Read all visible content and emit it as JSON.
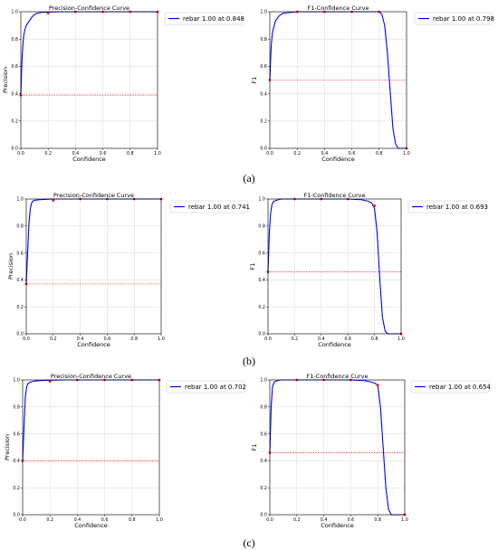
{
  "panels": [
    {
      "label": "(a)",
      "charts": [
        {
          "type": "line",
          "title": "Precision-Confidence Curve",
          "xlabel": "Confidence",
          "ylabel": "Precision",
          "xlim": [
            0,
            1
          ],
          "ylim": [
            0,
            1
          ],
          "xticks": [
            "0.0",
            "0.2",
            "0.4",
            "0.6",
            "0.8",
            "1.0"
          ],
          "yticks": [
            "0.0",
            "0.2",
            "0.4",
            "0.6",
            "0.8",
            "1.0"
          ],
          "grid": true,
          "legend_position": "right",
          "series": [
            {
              "name": "rebar 1.00 at 0.848",
              "color": "#0000ff",
              "x": [
                0.0,
                0.005,
                0.01,
                0.02,
                0.03,
                0.04,
                0.06,
                0.08,
                0.1,
                0.12,
                0.15,
                0.2,
                0.3,
                0.4,
                0.5,
                0.6,
                0.7,
                0.8,
                0.9,
                1.0
              ],
              "y": [
                0.39,
                0.55,
                0.68,
                0.82,
                0.87,
                0.9,
                0.93,
                0.96,
                0.98,
                0.99,
                0.995,
                0.998,
                1.0,
                1.0,
                1.0,
                1.0,
                1.0,
                1.0,
                1.0,
                1.0
              ]
            }
          ],
          "markers": {
            "x": [
              0.0,
              0.2,
              0.4,
              0.6,
              0.8,
              1.0
            ],
            "y": [
              0.39,
              0.99,
              1.0,
              1.0,
              1.0,
              1.0
            ],
            "color": "#ff0000"
          },
          "hline": {
            "y": 0.39,
            "color": "#ff0000"
          }
        },
        {
          "type": "line",
          "title": "F1-Confidence Curve",
          "xlabel": "Confidence",
          "ylabel": "F1",
          "xlim": [
            0,
            1
          ],
          "ylim": [
            0,
            1
          ],
          "xticks": [
            "0.0",
            "0.2",
            "0.4",
            "0.6",
            "0.8",
            "1.0"
          ],
          "yticks": [
            "0.0",
            "0.2",
            "0.4",
            "0.6",
            "0.8",
            "1.0"
          ],
          "grid": true,
          "legend_position": "right",
          "series": [
            {
              "name": "rebar 1.00 at 0.798",
              "color": "#0000ff",
              "x": [
                0.0,
                0.01,
                0.02,
                0.04,
                0.06,
                0.08,
                0.1,
                0.15,
                0.2,
                0.3,
                0.4,
                0.5,
                0.6,
                0.7,
                0.8,
                0.82,
                0.84,
                0.86,
                0.88,
                0.9,
                0.92,
                0.94,
                0.96,
                1.0
              ],
              "y": [
                0.5,
                0.75,
                0.85,
                0.93,
                0.96,
                0.98,
                0.99,
                0.995,
                1.0,
                1.0,
                1.0,
                1.0,
                1.0,
                1.0,
                1.0,
                0.98,
                0.9,
                0.7,
                0.42,
                0.15,
                0.03,
                0.0,
                0.0,
                0.0
              ]
            }
          ],
          "markers": {
            "x": [
              0.0,
              0.2,
              0.4,
              0.6,
              0.8,
              1.0
            ],
            "y": [
              0.5,
              1.0,
              1.0,
              1.0,
              1.0,
              0.0
            ],
            "color": "#ff0000"
          },
          "hline": {
            "y": 0.5,
            "color": "#ff0000"
          }
        }
      ]
    },
    {
      "label": "(b)",
      "charts": [
        {
          "type": "line",
          "title": "Precision-Confidence Curve",
          "xlabel": "Confidence",
          "ylabel": "Precision",
          "xlim": [
            0,
            1
          ],
          "ylim": [
            0,
            1
          ],
          "xticks": [
            "0.0",
            "0.2",
            "0.4",
            "0.6",
            "0.8",
            "1.0"
          ],
          "yticks": [
            "0.0",
            "0.2",
            "0.4",
            "0.6",
            "0.8",
            "1.0"
          ],
          "grid": true,
          "legend_position": "right",
          "series": [
            {
              "name": "rebar 1.00 at 0.741",
              "color": "#0000ff",
              "x": [
                0.0,
                0.01,
                0.02,
                0.03,
                0.04,
                0.05,
                0.06,
                0.08,
                0.1,
                0.15,
                0.2,
                0.3,
                0.4,
                0.5,
                0.6,
                0.7,
                0.8,
                0.9,
                1.0
              ],
              "y": [
                0.37,
                0.6,
                0.82,
                0.93,
                0.97,
                0.985,
                0.99,
                0.993,
                0.995,
                0.998,
                1.0,
                1.0,
                1.0,
                1.0,
                1.0,
                1.0,
                1.0,
                1.0,
                1.0
              ]
            }
          ],
          "markers": {
            "x": [
              0.0,
              0.2,
              0.4,
              0.6,
              0.8,
              1.0
            ],
            "y": [
              0.37,
              0.99,
              1.0,
              1.0,
              1.0,
              1.0
            ],
            "color": "#ff0000"
          },
          "hline": {
            "y": 0.37,
            "color": "#ff0000"
          }
        },
        {
          "type": "line",
          "title": "F1-Confidence Curve",
          "xlabel": "Confidence",
          "ylabel": "F1",
          "xlim": [
            0,
            1
          ],
          "ylim": [
            0,
            1
          ],
          "xticks": [
            "0.0",
            "0.2",
            "0.4",
            "0.6",
            "0.8",
            "1.0"
          ],
          "yticks": [
            "0.0",
            "0.2",
            "0.4",
            "0.6",
            "0.8",
            "1.0"
          ],
          "grid": true,
          "legend_position": "right",
          "series": [
            {
              "name": "rebar 1.00 at 0.693",
              "color": "#0000ff",
              "x": [
                0.0,
                0.01,
                0.02,
                0.03,
                0.04,
                0.06,
                0.08,
                0.1,
                0.2,
                0.3,
                0.4,
                0.5,
                0.6,
                0.7,
                0.75,
                0.78,
                0.8,
                0.82,
                0.84,
                0.86,
                0.88,
                0.9,
                1.0
              ],
              "y": [
                0.46,
                0.75,
                0.9,
                0.96,
                0.98,
                0.99,
                0.995,
                1.0,
                1.0,
                1.0,
                1.0,
                1.0,
                1.0,
                0.995,
                0.985,
                0.97,
                0.93,
                0.75,
                0.4,
                0.12,
                0.02,
                0.0,
                0.0
              ]
            }
          ],
          "markers": {
            "x": [
              0.0,
              0.2,
              0.4,
              0.6,
              0.8,
              1.0
            ],
            "y": [
              0.46,
              1.0,
              1.0,
              1.0,
              0.95,
              0.0
            ],
            "color": "#ff0000"
          },
          "hline": {
            "y": 0.46,
            "color": "#ff0000"
          }
        }
      ]
    },
    {
      "label": "(c)",
      "charts": [
        {
          "type": "line",
          "title": "Precision-Confidence Curve",
          "xlabel": "Confidence",
          "ylabel": "Precision",
          "xlim": [
            0,
            1
          ],
          "ylim": [
            0,
            1
          ],
          "xticks": [
            "0.0",
            "0.2",
            "0.4",
            "0.6",
            "0.8",
            "1.0"
          ],
          "yticks": [
            "0.0",
            "0.2",
            "0.4",
            "0.6",
            "0.8",
            "1.0"
          ],
          "grid": true,
          "legend_position": "right",
          "series": [
            {
              "name": "rebar 1.00 at 0.702",
              "color": "#0000ff",
              "x": [
                0.0,
                0.01,
                0.02,
                0.03,
                0.04,
                0.06,
                0.08,
                0.1,
                0.15,
                0.2,
                0.3,
                0.4,
                0.5,
                0.6,
                0.7,
                0.8,
                0.9,
                1.0
              ],
              "y": [
                0.4,
                0.65,
                0.88,
                0.95,
                0.975,
                0.985,
                0.99,
                0.993,
                0.996,
                0.998,
                1.0,
                1.0,
                1.0,
                1.0,
                1.0,
                1.0,
                1.0,
                1.0
              ]
            }
          ],
          "markers": {
            "x": [
              0.0,
              0.2,
              0.4,
              0.6,
              0.8,
              1.0
            ],
            "y": [
              0.4,
              0.99,
              1.0,
              1.0,
              1.0,
              1.0
            ],
            "color": "#ff0000"
          },
          "hline": {
            "y": 0.4,
            "color": "#ff0000"
          }
        },
        {
          "type": "line",
          "title": "F1-Confidence Curve",
          "xlabel": "Confidence",
          "ylabel": "F1",
          "xlim": [
            0,
            1
          ],
          "ylim": [
            0,
            1
          ],
          "xticks": [
            "0.0",
            "0.2",
            "0.4",
            "0.6",
            "0.8",
            "1.0"
          ],
          "yticks": [
            "0.0",
            "0.2",
            "0.4",
            "0.6",
            "0.8",
            "1.0"
          ],
          "grid": true,
          "legend_position": "right",
          "series": [
            {
              "name": "rebar 1.00 at 0.654",
              "color": "#0000ff",
              "x": [
                0.0,
                0.01,
                0.02,
                0.03,
                0.04,
                0.06,
                0.08,
                0.1,
                0.2,
                0.3,
                0.4,
                0.5,
                0.6,
                0.7,
                0.75,
                0.78,
                0.8,
                0.82,
                0.84,
                0.86,
                0.88,
                0.9,
                1.0
              ],
              "y": [
                0.46,
                0.8,
                0.95,
                0.98,
                0.99,
                0.995,
                1.0,
                1.0,
                1.0,
                1.0,
                1.0,
                1.0,
                1.0,
                0.995,
                0.985,
                0.975,
                0.96,
                0.8,
                0.5,
                0.2,
                0.04,
                0.0,
                0.0
              ]
            }
          ],
          "markers": {
            "x": [
              0.0,
              0.2,
              0.4,
              0.6,
              0.8,
              1.0
            ],
            "y": [
              0.46,
              1.0,
              1.0,
              1.0,
              0.96,
              0.0
            ],
            "color": "#ff0000"
          },
          "hline": {
            "y": 0.46,
            "color": "#ff0000"
          }
        }
      ]
    }
  ]
}
